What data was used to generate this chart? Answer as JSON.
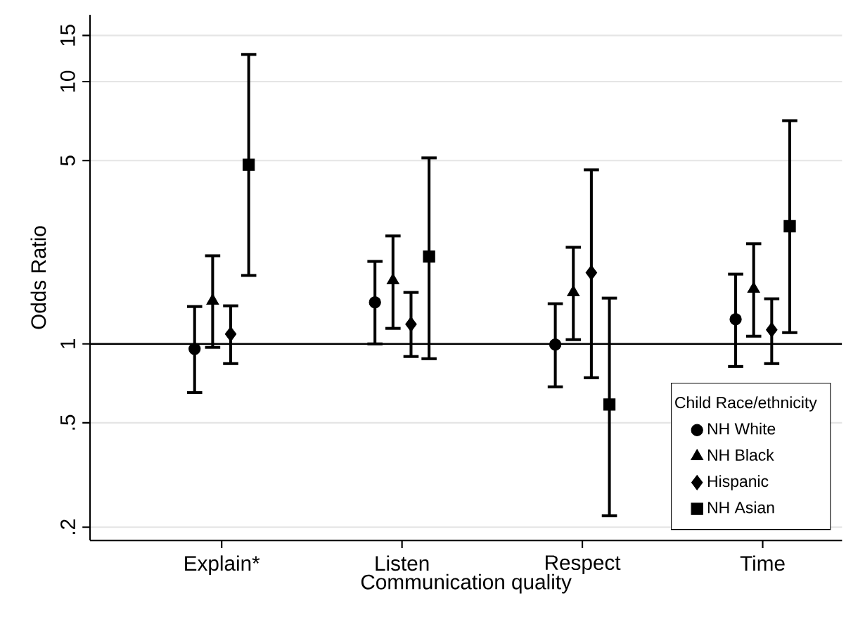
{
  "chart_data": {
    "type": "scatter",
    "xlabel": "Communication quality",
    "ylabel": "Odds Ratio",
    "legend_title": "Child Race/ethnicity",
    "categories": [
      "Explain*",
      "Listen",
      "Respect",
      "Time"
    ],
    "series": [
      {
        "name": "NH White",
        "color": "#000000",
        "marker": "circle",
        "values": [
          0.957,
          1.44,
          0.994,
          1.242
        ],
        "errors": [
          [
            0.652,
            1.388
          ],
          [
            1.0,
            2.063
          ],
          [
            0.686,
            1.423
          ],
          [
            0.82,
            1.845
          ]
        ]
      },
      {
        "name": "NH Black",
        "color": "#000000",
        "marker": "triangle",
        "values": [
          1.459,
          1.745,
          1.571,
          1.62
        ],
        "errors": [
          [
            0.97,
            2.168
          ],
          [
            1.146,
            2.58
          ],
          [
            1.038,
            2.335
          ],
          [
            1.07,
            2.41
          ]
        ]
      },
      {
        "name": "Hispanic",
        "color": "#000000",
        "marker": "diamond",
        "values": [
          1.09,
          1.189,
          1.869,
          1.132
        ],
        "errors": [
          [
            0.841,
            1.397
          ],
          [
            0.895,
            1.571
          ],
          [
            0.743,
            4.61
          ],
          [
            0.841,
            1.486
          ]
        ]
      },
      {
        "name": "NH Asian",
        "color": "#000000",
        "marker": "square",
        "values": [
          4.82,
          2.154,
          0.587,
          2.81
        ],
        "errors": [
          [
            1.824,
            12.7
          ],
          [
            0.878,
            5.12
          ],
          [
            0.221,
            1.495
          ],
          [
            1.104,
            7.1
          ]
        ]
      }
    ],
    "log": "y",
    "ylim": [
      0.178,
      18
    ],
    "yticks": [
      {
        "value": 0.2,
        "label": ".2"
      },
      {
        "value": 0.5,
        "label": ".5"
      },
      1,
      5,
      10,
      15
    ],
    "ref_lines": [
      {
        "axis": "y",
        "value": 1,
        "color": "#000000"
      }
    ],
    "grid": "y",
    "legend": "bottom right"
  }
}
